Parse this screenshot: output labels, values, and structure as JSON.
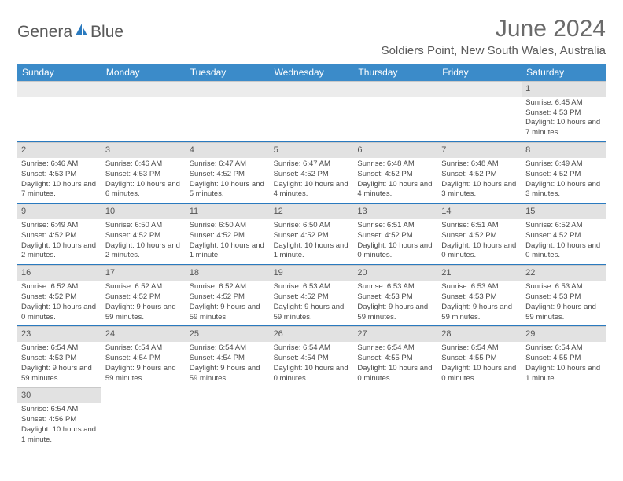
{
  "logo": {
    "text1": "Genera",
    "text2": "Blue"
  },
  "title": "June 2024",
  "location": "Soldiers Point, New South Wales, Australia",
  "colors": {
    "header_bg": "#3b8bc9",
    "header_text": "#ffffff",
    "row_divider": "#2a7abf",
    "daynum_bg": "#e2e2e2",
    "body_text": "#4a4a4a"
  },
  "day_names": [
    "Sunday",
    "Monday",
    "Tuesday",
    "Wednesday",
    "Thursday",
    "Friday",
    "Saturday"
  ],
  "weeks": [
    [
      {
        "n": "",
        "sr": "",
        "ss": "",
        "dl": ""
      },
      {
        "n": "",
        "sr": "",
        "ss": "",
        "dl": ""
      },
      {
        "n": "",
        "sr": "",
        "ss": "",
        "dl": ""
      },
      {
        "n": "",
        "sr": "",
        "ss": "",
        "dl": ""
      },
      {
        "n": "",
        "sr": "",
        "ss": "",
        "dl": ""
      },
      {
        "n": "",
        "sr": "",
        "ss": "",
        "dl": ""
      },
      {
        "n": "1",
        "sr": "Sunrise: 6:45 AM",
        "ss": "Sunset: 4:53 PM",
        "dl": "Daylight: 10 hours and 7 minutes."
      }
    ],
    [
      {
        "n": "2",
        "sr": "Sunrise: 6:46 AM",
        "ss": "Sunset: 4:53 PM",
        "dl": "Daylight: 10 hours and 7 minutes."
      },
      {
        "n": "3",
        "sr": "Sunrise: 6:46 AM",
        "ss": "Sunset: 4:53 PM",
        "dl": "Daylight: 10 hours and 6 minutes."
      },
      {
        "n": "4",
        "sr": "Sunrise: 6:47 AM",
        "ss": "Sunset: 4:52 PM",
        "dl": "Daylight: 10 hours and 5 minutes."
      },
      {
        "n": "5",
        "sr": "Sunrise: 6:47 AM",
        "ss": "Sunset: 4:52 PM",
        "dl": "Daylight: 10 hours and 4 minutes."
      },
      {
        "n": "6",
        "sr": "Sunrise: 6:48 AM",
        "ss": "Sunset: 4:52 PM",
        "dl": "Daylight: 10 hours and 4 minutes."
      },
      {
        "n": "7",
        "sr": "Sunrise: 6:48 AM",
        "ss": "Sunset: 4:52 PM",
        "dl": "Daylight: 10 hours and 3 minutes."
      },
      {
        "n": "8",
        "sr": "Sunrise: 6:49 AM",
        "ss": "Sunset: 4:52 PM",
        "dl": "Daylight: 10 hours and 3 minutes."
      }
    ],
    [
      {
        "n": "9",
        "sr": "Sunrise: 6:49 AM",
        "ss": "Sunset: 4:52 PM",
        "dl": "Daylight: 10 hours and 2 minutes."
      },
      {
        "n": "10",
        "sr": "Sunrise: 6:50 AM",
        "ss": "Sunset: 4:52 PM",
        "dl": "Daylight: 10 hours and 2 minutes."
      },
      {
        "n": "11",
        "sr": "Sunrise: 6:50 AM",
        "ss": "Sunset: 4:52 PM",
        "dl": "Daylight: 10 hours and 1 minute."
      },
      {
        "n": "12",
        "sr": "Sunrise: 6:50 AM",
        "ss": "Sunset: 4:52 PM",
        "dl": "Daylight: 10 hours and 1 minute."
      },
      {
        "n": "13",
        "sr": "Sunrise: 6:51 AM",
        "ss": "Sunset: 4:52 PM",
        "dl": "Daylight: 10 hours and 0 minutes."
      },
      {
        "n": "14",
        "sr": "Sunrise: 6:51 AM",
        "ss": "Sunset: 4:52 PM",
        "dl": "Daylight: 10 hours and 0 minutes."
      },
      {
        "n": "15",
        "sr": "Sunrise: 6:52 AM",
        "ss": "Sunset: 4:52 PM",
        "dl": "Daylight: 10 hours and 0 minutes."
      }
    ],
    [
      {
        "n": "16",
        "sr": "Sunrise: 6:52 AM",
        "ss": "Sunset: 4:52 PM",
        "dl": "Daylight: 10 hours and 0 minutes."
      },
      {
        "n": "17",
        "sr": "Sunrise: 6:52 AM",
        "ss": "Sunset: 4:52 PM",
        "dl": "Daylight: 9 hours and 59 minutes."
      },
      {
        "n": "18",
        "sr": "Sunrise: 6:52 AM",
        "ss": "Sunset: 4:52 PM",
        "dl": "Daylight: 9 hours and 59 minutes."
      },
      {
        "n": "19",
        "sr": "Sunrise: 6:53 AM",
        "ss": "Sunset: 4:52 PM",
        "dl": "Daylight: 9 hours and 59 minutes."
      },
      {
        "n": "20",
        "sr": "Sunrise: 6:53 AM",
        "ss": "Sunset: 4:53 PM",
        "dl": "Daylight: 9 hours and 59 minutes."
      },
      {
        "n": "21",
        "sr": "Sunrise: 6:53 AM",
        "ss": "Sunset: 4:53 PM",
        "dl": "Daylight: 9 hours and 59 minutes."
      },
      {
        "n": "22",
        "sr": "Sunrise: 6:53 AM",
        "ss": "Sunset: 4:53 PM",
        "dl": "Daylight: 9 hours and 59 minutes."
      }
    ],
    [
      {
        "n": "23",
        "sr": "Sunrise: 6:54 AM",
        "ss": "Sunset: 4:53 PM",
        "dl": "Daylight: 9 hours and 59 minutes."
      },
      {
        "n": "24",
        "sr": "Sunrise: 6:54 AM",
        "ss": "Sunset: 4:54 PM",
        "dl": "Daylight: 9 hours and 59 minutes."
      },
      {
        "n": "25",
        "sr": "Sunrise: 6:54 AM",
        "ss": "Sunset: 4:54 PM",
        "dl": "Daylight: 9 hours and 59 minutes."
      },
      {
        "n": "26",
        "sr": "Sunrise: 6:54 AM",
        "ss": "Sunset: 4:54 PM",
        "dl": "Daylight: 10 hours and 0 minutes."
      },
      {
        "n": "27",
        "sr": "Sunrise: 6:54 AM",
        "ss": "Sunset: 4:55 PM",
        "dl": "Daylight: 10 hours and 0 minutes."
      },
      {
        "n": "28",
        "sr": "Sunrise: 6:54 AM",
        "ss": "Sunset: 4:55 PM",
        "dl": "Daylight: 10 hours and 0 minutes."
      },
      {
        "n": "29",
        "sr": "Sunrise: 6:54 AM",
        "ss": "Sunset: 4:55 PM",
        "dl": "Daylight: 10 hours and 1 minute."
      }
    ],
    [
      {
        "n": "30",
        "sr": "Sunrise: 6:54 AM",
        "ss": "Sunset: 4:56 PM",
        "dl": "Daylight: 10 hours and 1 minute."
      },
      {
        "n": "",
        "sr": "",
        "ss": "",
        "dl": ""
      },
      {
        "n": "",
        "sr": "",
        "ss": "",
        "dl": ""
      },
      {
        "n": "",
        "sr": "",
        "ss": "",
        "dl": ""
      },
      {
        "n": "",
        "sr": "",
        "ss": "",
        "dl": ""
      },
      {
        "n": "",
        "sr": "",
        "ss": "",
        "dl": ""
      },
      {
        "n": "",
        "sr": "",
        "ss": "",
        "dl": ""
      }
    ]
  ]
}
